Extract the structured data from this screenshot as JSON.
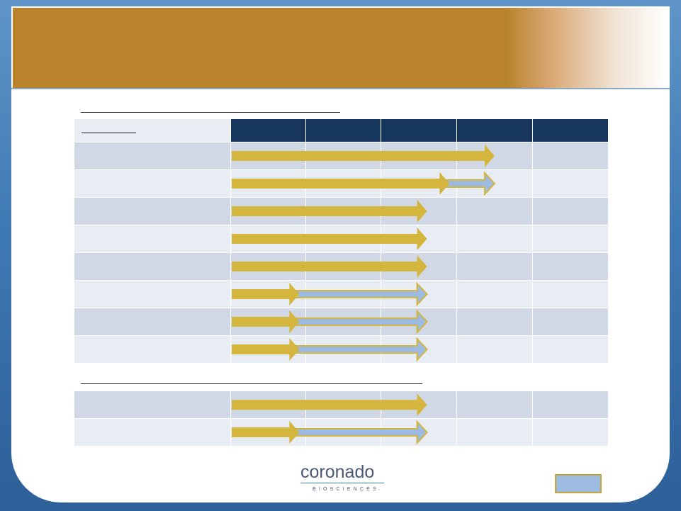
{
  "slide": {
    "title": "",
    "colors": {
      "banner": "#b8832a",
      "header_fill": "#17365d",
      "row_dark": "#d1d8e5",
      "row_light": "#e8edf4",
      "arrow_gold": "#d4b53d",
      "arrow_blue": "#9dbbe0"
    }
  },
  "pipeline": {
    "stage_count": 5,
    "section1": {
      "rows": [
        {
          "gold": 3.5,
          "blue": 0
        },
        {
          "gold": 2.9,
          "blue": 3.5
        },
        {
          "gold": 2.6,
          "blue": 0
        },
        {
          "gold": 2.6,
          "blue": 0
        },
        {
          "gold": 2.6,
          "blue": 0
        },
        {
          "gold": 0.9,
          "blue": 2.6
        },
        {
          "gold": 0.9,
          "blue": 2.6
        },
        {
          "gold": 0.9,
          "blue": 2.6
        }
      ]
    },
    "section2": {
      "rows": [
        {
          "gold": 2.6,
          "blue": 0
        },
        {
          "gold": 0.9,
          "blue": 2.6
        }
      ]
    }
  },
  "logo": {
    "name": "coronado",
    "tagline": "BIOSCIENCES"
  },
  "footer": {
    "page_number": ""
  }
}
